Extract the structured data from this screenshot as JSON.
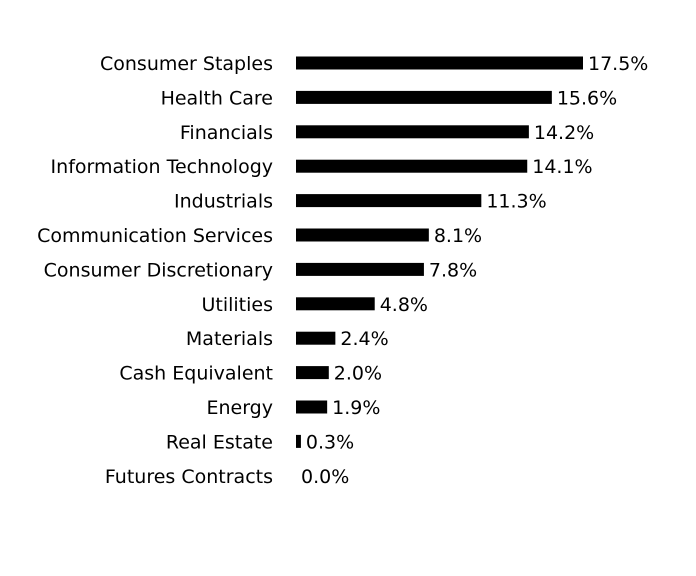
{
  "chart_data": {
    "type": "bar",
    "orientation": "horizontal",
    "categories": [
      "Consumer Staples",
      "Health Care",
      "Financials",
      "Information Technology",
      "Industrials",
      "Communication Services",
      "Consumer Discretionary",
      "Utilities",
      "Materials",
      "Cash Equivalent",
      "Energy",
      "Real Estate",
      "Futures Contracts"
    ],
    "values": [
      17.5,
      15.6,
      14.2,
      14.1,
      11.3,
      8.1,
      7.8,
      4.8,
      2.4,
      2.0,
      1.9,
      0.3,
      0.0
    ],
    "value_labels": [
      "17.5%",
      "15.6%",
      "14.2%",
      "14.1%",
      "11.3%",
      "8.1%",
      "7.8%",
      "4.8%",
      "2.4%",
      "2.0%",
      "1.9%",
      "0.3%",
      "0.0%"
    ],
    "title": "",
    "xlabel": "",
    "ylabel": "",
    "xlim": [
      0,
      17.5
    ],
    "grid": false,
    "legend": "none",
    "bar_color": "#000000"
  }
}
